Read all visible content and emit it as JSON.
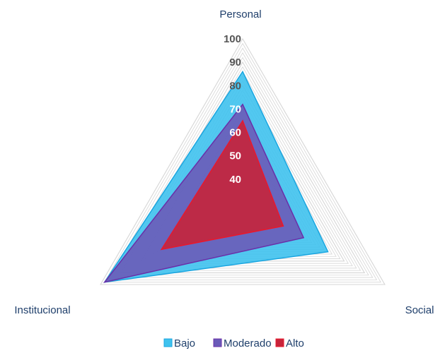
{
  "chart_data": {
    "type": "radar",
    "axes": [
      "Personal",
      "Social",
      "Institucional"
    ],
    "rlim": [
      30,
      100
    ],
    "ticks": [
      40,
      50,
      60,
      70,
      80,
      90,
      100
    ],
    "tick_labels": [
      "40",
      "50",
      "60",
      "70",
      "80",
      "90",
      "100"
    ],
    "legend_position": "bottom",
    "series": [
      {
        "name": "Bajo",
        "values": [
          86,
          72,
          98
        ],
        "fill": "#3fc2ee",
        "stroke": "#1aa6e0"
      },
      {
        "name": "Moderado",
        "values": [
          72,
          60,
          98
        ],
        "fill": "#6a5bb8",
        "stroke": "#6a2fa8"
      },
      {
        "name": "Alto",
        "values": [
          65,
          50,
          70
        ],
        "fill": "#c7243a",
        "stroke": "#e8182d"
      }
    ]
  },
  "colors": {
    "grid": "#d6d6d6",
    "axis_text": "#1f3f6b",
    "tick_dark": "#555555",
    "tick_light": "#ffffff"
  }
}
